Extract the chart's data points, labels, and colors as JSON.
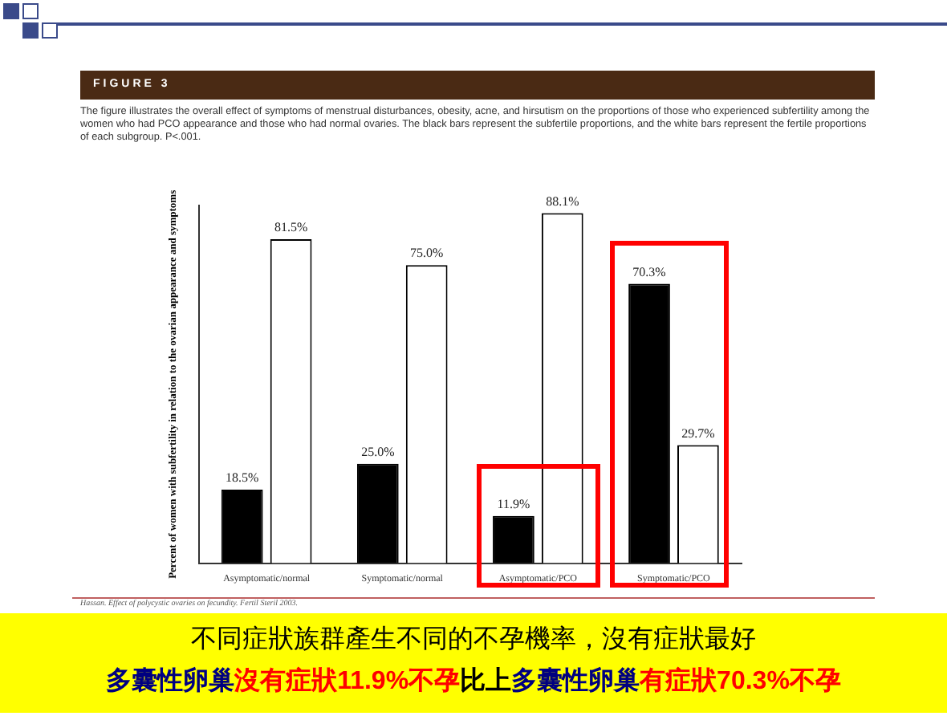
{
  "chart_data": {
    "type": "bar",
    "title": "FIGURE 3",
    "subtitle": "The figure illustrates the overall effect of symptoms of menstrual disturbances, obesity, acne, and hirsutism on the proportions of those who experienced subfertility among the women who had PCO appearance and those who had normal ovaries. The black bars represent the subfertile proportions, and the white bars represent the fertile proportions of each subgroup. P<.001.",
    "ylabel": "Percent of women with subfertility in relation to the ovarian appearance and symptoms",
    "categories": [
      "Asymptomatic/normal",
      "Symptomatic/normal",
      "Asymptomatic/PCO",
      "Symptomatic/PCO"
    ],
    "series": [
      {
        "color": "#000000",
        "values": [
          18.5,
          25.0,
          11.9,
          70.3
        ],
        "value_labels": [
          "18.5%",
          "25.0%",
          "11.9%",
          "70.3%"
        ]
      },
      {
        "color": "#ffffff",
        "values": [
          81.5,
          75.0,
          88.1,
          29.7
        ],
        "value_labels": [
          "81.5%",
          "75.0%",
          "88.1%",
          "29.7%"
        ]
      }
    ],
    "legend": false,
    "grid": false,
    "annotations": [
      "Hassan. Effect of polycystic ovaries on fecundity. Fertil Steril 2003.",
      "不同症狀族群產生不同的不孕機率，沒有症狀最好",
      "多囊性卵巢",
      "沒有症狀11.9%不孕",
      "比上",
      "多囊性卵巢",
      "有症狀70.3%不孕"
    ]
  }
}
